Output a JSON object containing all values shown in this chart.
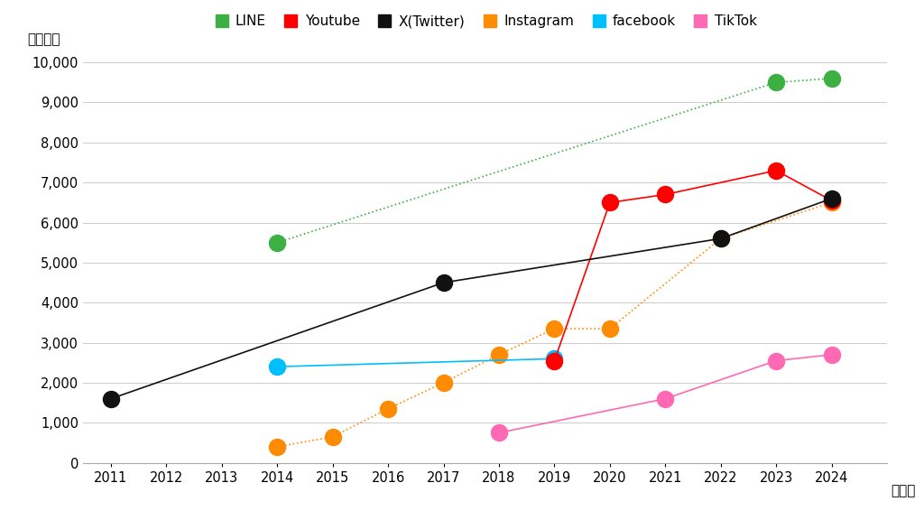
{
  "title_y_label": "（万人）",
  "x_label": "（年）",
  "background_color": "#ffffff",
  "grid_color": "#cccccc",
  "ylim": [
    0,
    10000
  ],
  "yticks": [
    0,
    1000,
    2000,
    3000,
    4000,
    5000,
    6000,
    7000,
    8000,
    9000,
    10000
  ],
  "xlim": [
    2010.5,
    2025.0
  ],
  "xticks": [
    2011,
    2012,
    2013,
    2014,
    2015,
    2016,
    2017,
    2018,
    2019,
    2020,
    2021,
    2022,
    2023,
    2024
  ],
  "series": [
    {
      "name": "LINE",
      "color": "#3cb043",
      "linestyle": "dotted",
      "linewidth": 1.2,
      "markersize": 13,
      "zorder": 3,
      "data": {
        "x": [
          2014,
          2023,
          2024
        ],
        "y": [
          5500,
          9500,
          9600
        ]
      }
    },
    {
      "name": "Youtube",
      "color": "#ff0000",
      "linestyle": "solid",
      "linewidth": 1.2,
      "markersize": 13,
      "zorder": 4,
      "data": {
        "x": [
          2019,
          2020,
          2021,
          2023,
          2024
        ],
        "y": [
          2550,
          6500,
          6700,
          7300,
          6550
        ]
      }
    },
    {
      "name": "X(Twitter)",
      "color": "#111111",
      "linestyle": "solid",
      "linewidth": 1.2,
      "markersize": 13,
      "zorder": 5,
      "data": {
        "x": [
          2011,
          2017,
          2022,
          2024
        ],
        "y": [
          1600,
          4500,
          5600,
          6600
        ]
      }
    },
    {
      "name": "Instagram",
      "color": "#ff8c00",
      "linestyle": "dotted",
      "linewidth": 1.2,
      "markersize": 13,
      "zorder": 3,
      "data": {
        "x": [
          2014,
          2015,
          2016,
          2017,
          2018,
          2019,
          2020,
          2022,
          2024
        ],
        "y": [
          400,
          650,
          1350,
          2000,
          2700,
          3350,
          3350,
          5600,
          6500
        ]
      }
    },
    {
      "name": "facebook",
      "color": "#00bfff",
      "linestyle": "solid",
      "linewidth": 1.2,
      "markersize": 13,
      "zorder": 3,
      "data": {
        "x": [
          2014,
          2019
        ],
        "y": [
          2400,
          2600
        ]
      }
    },
    {
      "name": "TikTok",
      "color": "#ff69b4",
      "linestyle": "solid",
      "linewidth": 1.2,
      "markersize": 13,
      "zorder": 3,
      "data": {
        "x": [
          2018,
          2021,
          2023,
          2024
        ],
        "y": [
          750,
          1600,
          2550,
          2700
        ]
      }
    }
  ]
}
